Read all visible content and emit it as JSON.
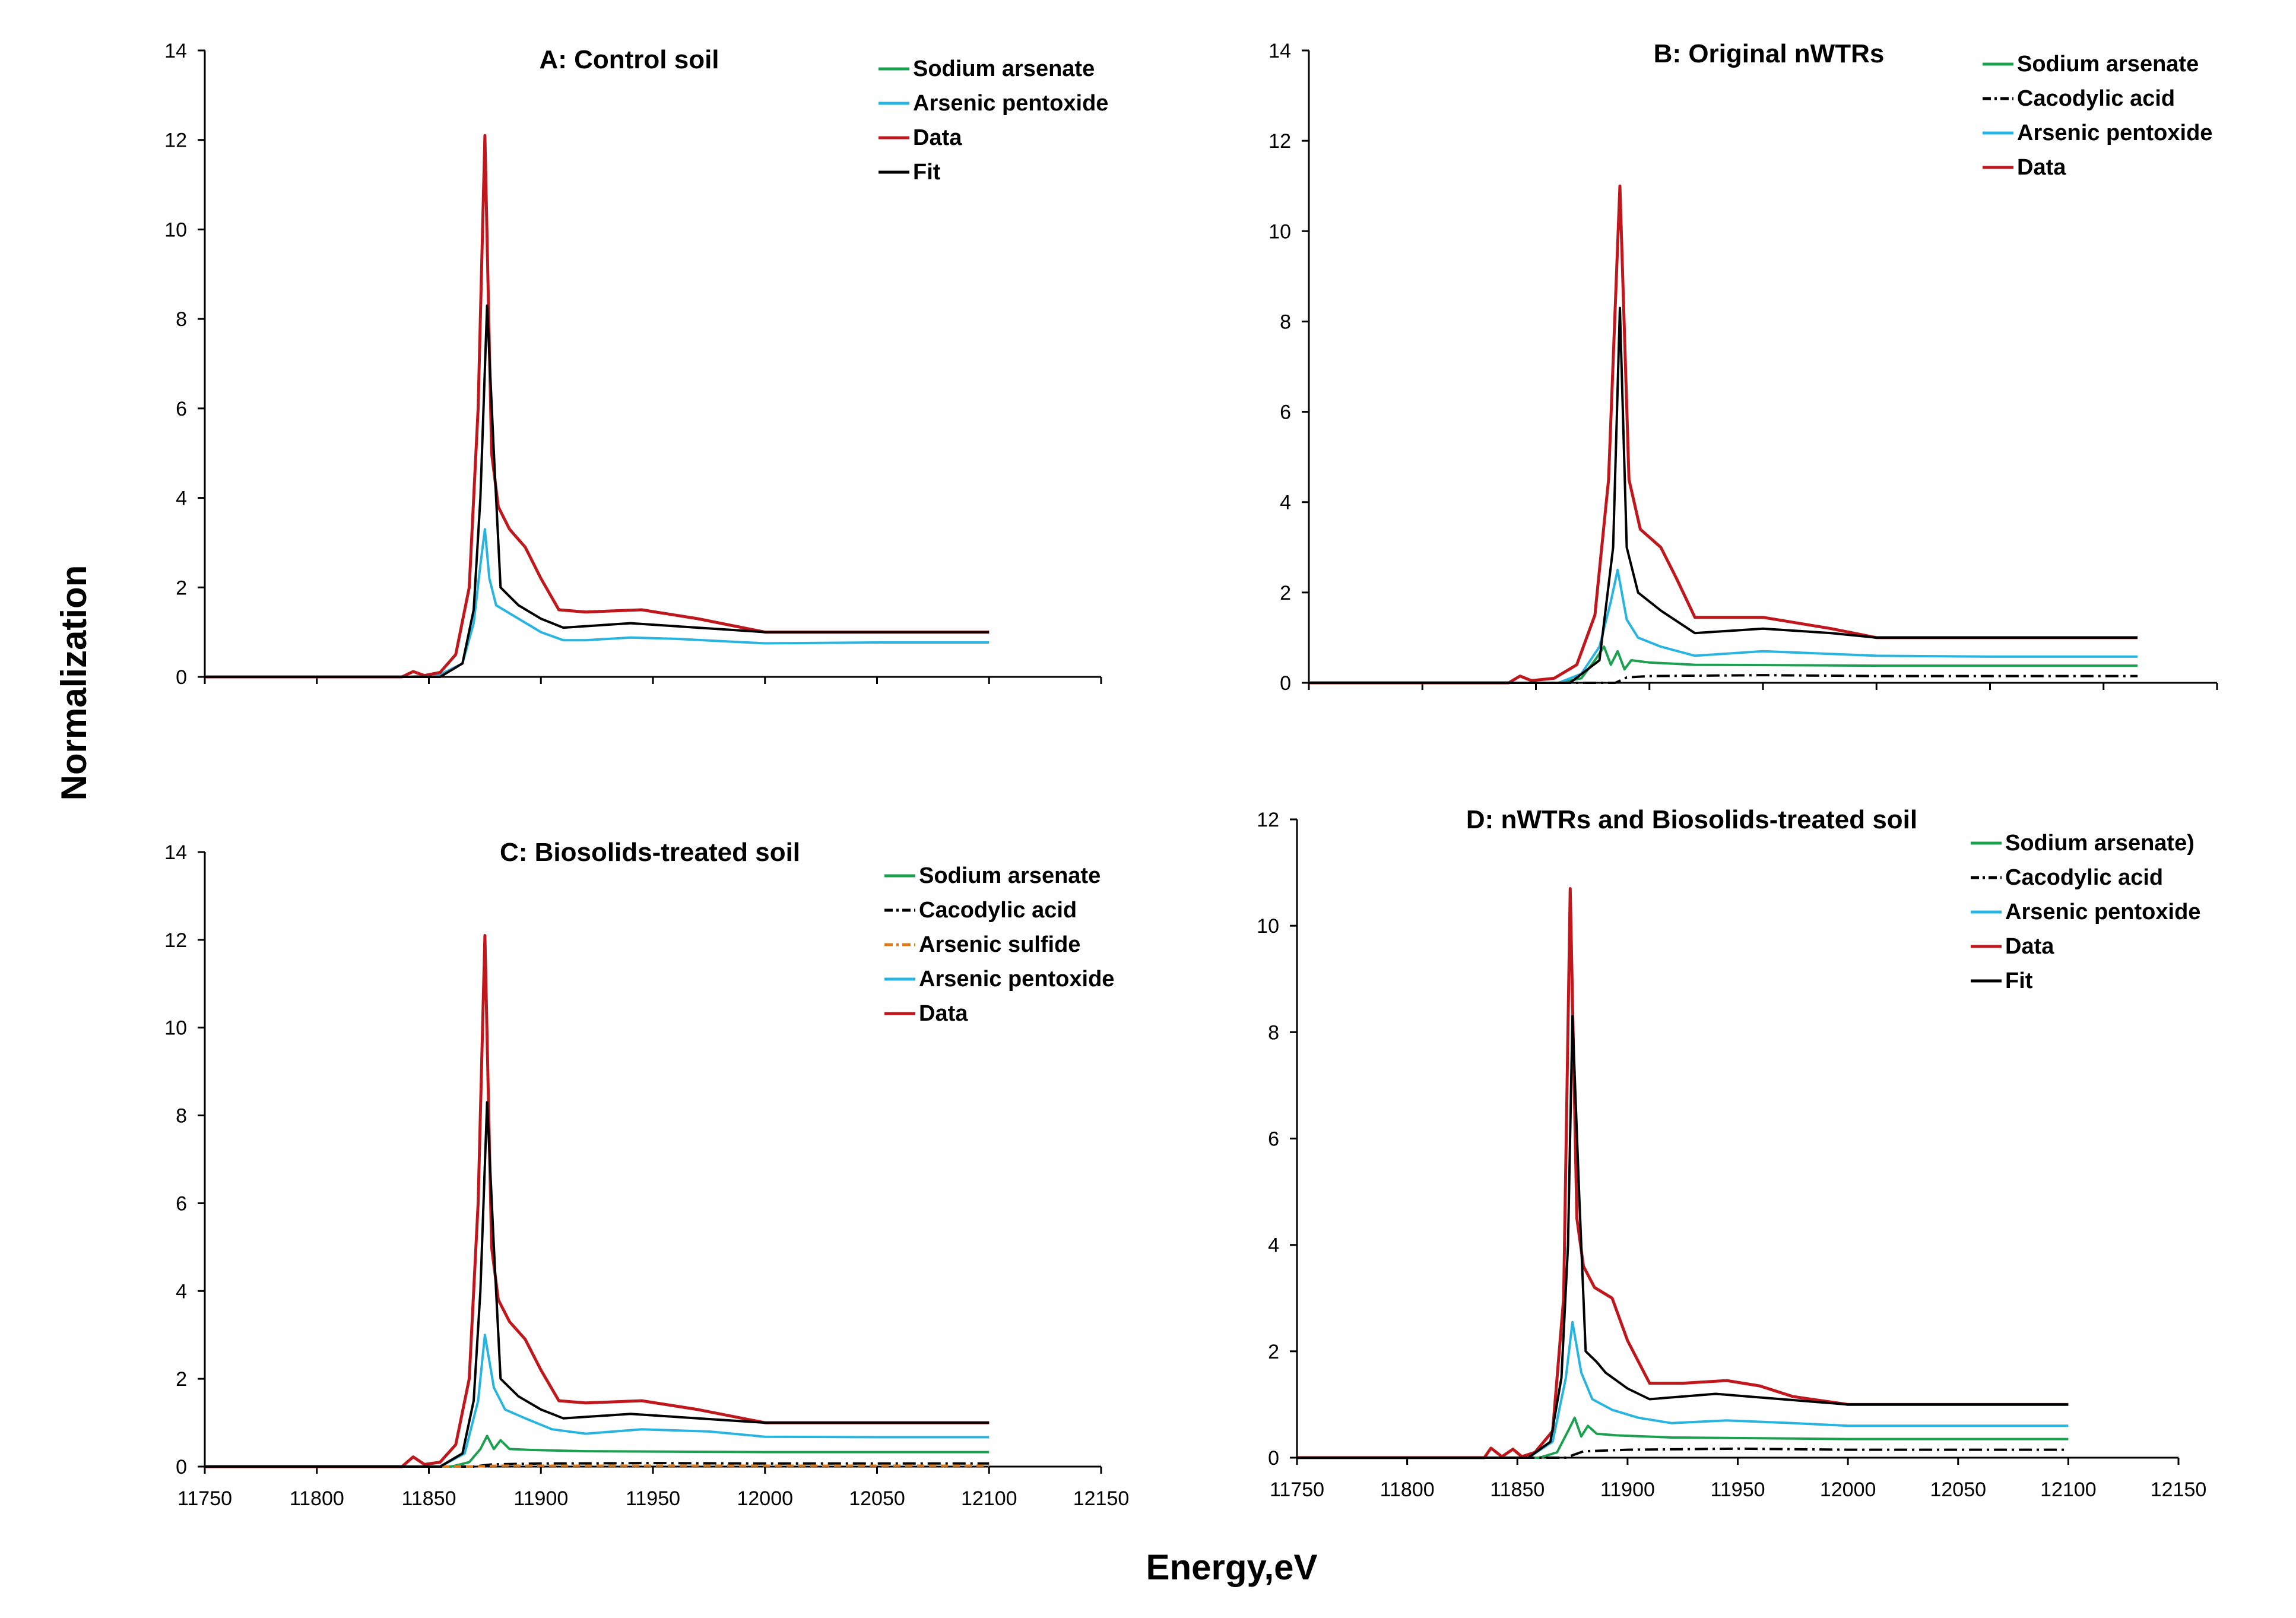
{
  "xlabel": "Energy,eV",
  "ylabel": "Normalization",
  "colors": {
    "Sodium arsenate": "#1aa04f",
    "Sodium arsenate)": "#1aa04f",
    "Arsenic pentoxide": "#27b4e0",
    "Data": "#c0171d",
    "Fit": "#000000",
    "Cacodylic acid": "#000000",
    "Arsenic sulfide": "#e07b1a"
  },
  "chart_data": [
    {
      "type": "line",
      "title": "A: Control  soil",
      "xlim": [
        11750,
        12150
      ],
      "ylim": [
        0,
        14
      ],
      "yticks": [
        0,
        2,
        4,
        6,
        8,
        10,
        12,
        14
      ],
      "xticks": [
        11750,
        11800,
        11850,
        11900,
        11950,
        12000,
        12050,
        12100,
        12150
      ],
      "show_xtick_labels": false,
      "legend": [
        "Sodium arsenate",
        "Arsenic pentoxide",
        "Data",
        "Fit"
      ],
      "series": [
        {
          "name": "Arsenic pentoxide",
          "x": [
            11750,
            11840,
            11855,
            11865,
            11870,
            11873,
            11875,
            11877,
            11880,
            11890,
            11900,
            11910,
            11920,
            11940,
            11960,
            12000,
            12050,
            12100
          ],
          "y": [
            0,
            0,
            0.05,
            0.3,
            1.2,
            2.5,
            3.3,
            2.2,
            1.6,
            1.3,
            1.0,
            0.82,
            0.82,
            0.88,
            0.85,
            0.75,
            0.77,
            0.77
          ]
        },
        {
          "name": "Data",
          "x": [
            11750,
            11838,
            11843,
            11848,
            11855,
            11862,
            11868,
            11872,
            11875,
            11878,
            11881,
            11886,
            11893,
            11900,
            11908,
            11920,
            11945,
            11970,
            12000,
            12050,
            12100
          ],
          "y": [
            0,
            0,
            0.12,
            0.03,
            0.1,
            0.5,
            2.0,
            6.0,
            12.1,
            5.0,
            3.8,
            3.3,
            2.9,
            2.2,
            1.5,
            1.45,
            1.5,
            1.3,
            1.0,
            1.0,
            1.0
          ]
        },
        {
          "name": "Fit",
          "x": [
            11750,
            11855,
            11865,
            11870,
            11873,
            11876,
            11879,
            11882,
            11886,
            11890,
            11900,
            11910,
            11940,
            11970,
            12000,
            12050,
            12100
          ],
          "y": [
            0,
            0,
            0.3,
            1.5,
            4.0,
            8.3,
            5.0,
            2.0,
            1.8,
            1.6,
            1.3,
            1.1,
            1.2,
            1.1,
            1.0,
            1.0,
            1.0
          ]
        }
      ]
    },
    {
      "type": "line",
      "title": "B: Original nWTRs",
      "xlim": [
        11750,
        12150
      ],
      "ylim": [
        0,
        14
      ],
      "yticks": [
        0,
        2,
        4,
        6,
        8,
        10,
        12,
        14
      ],
      "xticks": [
        11750,
        11800,
        11850,
        11900,
        11950,
        12000,
        12050,
        12100,
        12150
      ],
      "show_xtick_labels": false,
      "legend": [
        "Sodium arsenate",
        "Cacodylic acid",
        "Arsenic pentoxide",
        "Data"
      ],
      "series": [
        {
          "name": "Sodium arsenate",
          "x": [
            11750,
            11860,
            11870,
            11876,
            11880,
            11883,
            11886,
            11889,
            11892,
            11900,
            11920,
            12000,
            12050,
            12115
          ],
          "y": [
            0,
            0,
            0.1,
            0.5,
            0.8,
            0.4,
            0.7,
            0.3,
            0.5,
            0.45,
            0.4,
            0.38,
            0.38,
            0.38
          ]
        },
        {
          "name": "Cacodylic acid",
          "x": [
            11750,
            11885,
            11890,
            11900,
            11950,
            12000,
            12050,
            12115
          ],
          "y": [
            0,
            0,
            0.12,
            0.15,
            0.17,
            0.15,
            0.15,
            0.15
          ]
        },
        {
          "name": "Arsenic pentoxide",
          "x": [
            11750,
            11860,
            11870,
            11878,
            11883,
            11886,
            11890,
            11895,
            11905,
            11920,
            11950,
            12000,
            12050,
            12115
          ],
          "y": [
            0,
            0,
            0.2,
            0.8,
            1.8,
            2.5,
            1.4,
            1.0,
            0.8,
            0.6,
            0.7,
            0.6,
            0.58,
            0.58
          ]
        },
        {
          "name": "Data",
          "x": [
            11750,
            11838,
            11843,
            11848,
            11858,
            11868,
            11876,
            11882,
            11887,
            11891,
            11896,
            11905,
            11912,
            11920,
            11950,
            11980,
            12000,
            12050,
            12115
          ],
          "y": [
            0,
            0,
            0.15,
            0.05,
            0.1,
            0.4,
            1.5,
            4.5,
            11.0,
            4.5,
            3.4,
            3.0,
            2.3,
            1.45,
            1.45,
            1.2,
            1.0,
            1.0,
            1.0
          ]
        },
        {
          "name": "Fit",
          "x": [
            11750,
            11865,
            11878,
            11884,
            11887,
            11890,
            11895,
            11905,
            11920,
            11950,
            11980,
            12000,
            12115
          ],
          "y": [
            0,
            0,
            0.5,
            3.0,
            8.3,
            3.0,
            2.0,
            1.6,
            1.1,
            1.2,
            1.1,
            1.0,
            1.0
          ]
        }
      ]
    },
    {
      "type": "line",
      "title": "C: Biosolids-treated soil",
      "xlim": [
        11750,
        12150
      ],
      "ylim": [
        0,
        14
      ],
      "yticks": [
        0,
        2,
        4,
        6,
        8,
        10,
        12,
        14
      ],
      "xticks": [
        11750,
        11800,
        11850,
        11900,
        11950,
        12000,
        12050,
        12100,
        12150
      ],
      "show_xtick_labels": true,
      "legend": [
        "Sodium arsenate",
        "Cacodylic acid",
        "Arsenic sulfide",
        "Arsenic pentoxide",
        "Data"
      ],
      "series": [
        {
          "name": "Sodium arsenate",
          "x": [
            11750,
            11860,
            11868,
            11873,
            11876,
            11879,
            11882,
            11886,
            11895,
            11920,
            12000,
            12100
          ],
          "y": [
            0,
            0,
            0.1,
            0.4,
            0.7,
            0.4,
            0.6,
            0.4,
            0.38,
            0.35,
            0.33,
            0.33
          ]
        },
        {
          "name": "Cacodylic acid",
          "x": [
            11750,
            11870,
            11878,
            11900,
            11950,
            12000,
            12100
          ],
          "y": [
            0,
            0,
            0.05,
            0.07,
            0.08,
            0.07,
            0.07
          ]
        },
        {
          "name": "Arsenic sulfide",
          "x": [
            11750,
            11870,
            11880,
            11950,
            12100
          ],
          "y": [
            0,
            0,
            0.02,
            0.02,
            0.02
          ]
        },
        {
          "name": "Arsenic pentoxide",
          "x": [
            11750,
            11855,
            11866,
            11872,
            11875,
            11879,
            11884,
            11893,
            11905,
            11920,
            11945,
            11975,
            12000,
            12050,
            12100
          ],
          "y": [
            0,
            0,
            0.3,
            1.5,
            3.0,
            1.8,
            1.3,
            1.1,
            0.85,
            0.75,
            0.85,
            0.8,
            0.68,
            0.67,
            0.67
          ]
        },
        {
          "name": "Data",
          "x": [
            11750,
            11838,
            11843,
            11848,
            11855,
            11862,
            11868,
            11872,
            11875,
            11878,
            11881,
            11886,
            11893,
            11900,
            11908,
            11920,
            11945,
            11970,
            12000,
            12050,
            12100
          ],
          "y": [
            0,
            0,
            0.22,
            0.05,
            0.1,
            0.5,
            2.0,
            6.0,
            12.1,
            5.0,
            3.8,
            3.3,
            2.9,
            2.2,
            1.5,
            1.45,
            1.5,
            1.3,
            1.0,
            1.0,
            1.0
          ]
        },
        {
          "name": "Fit",
          "x": [
            11750,
            11855,
            11865,
            11870,
            11873,
            11876,
            11879,
            11882,
            11886,
            11890,
            11900,
            11910,
            11940,
            11970,
            12000,
            12050,
            12100
          ],
          "y": [
            0,
            0,
            0.3,
            1.5,
            4.0,
            8.3,
            5.0,
            2.0,
            1.8,
            1.6,
            1.3,
            1.1,
            1.2,
            1.1,
            1.0,
            1.0,
            1.0
          ]
        }
      ]
    },
    {
      "type": "line",
      "title": "D: nWTRs and Biosolids-treated soil",
      "xlim": [
        11750,
        12150
      ],
      "ylim": [
        0,
        12
      ],
      "yticks": [
        0,
        2,
        4,
        6,
        8,
        10,
        12
      ],
      "xticks": [
        11750,
        11800,
        11850,
        11900,
        11950,
        12000,
        12050,
        12100,
        12150
      ],
      "show_xtick_labels": true,
      "legend": [
        "Sodium arsenate)",
        "Cacodylic acid",
        "Arsenic pentoxide",
        "Data",
        "Fit"
      ],
      "series": [
        {
          "name": "Sodium arsenate)",
          "x": [
            11750,
            11860,
            11868,
            11873,
            11876,
            11879,
            11882,
            11886,
            11895,
            11920,
            12000,
            12100
          ],
          "y": [
            0,
            0,
            0.1,
            0.5,
            0.75,
            0.4,
            0.6,
            0.45,
            0.42,
            0.38,
            0.35,
            0.35
          ]
        },
        {
          "name": "Cacodylic acid",
          "x": [
            11750,
            11872,
            11880,
            11900,
            11950,
            12000,
            12100
          ],
          "y": [
            0,
            0,
            0.12,
            0.15,
            0.17,
            0.15,
            0.15
          ]
        },
        {
          "name": "Arsenic pentoxide",
          "x": [
            11750,
            11855,
            11866,
            11872,
            11875,
            11879,
            11884,
            11893,
            11905,
            11920,
            11945,
            11975,
            12000,
            12050,
            12100
          ],
          "y": [
            0,
            0,
            0.3,
            1.5,
            2.55,
            1.6,
            1.1,
            0.9,
            0.75,
            0.65,
            0.7,
            0.65,
            0.6,
            0.6,
            0.6
          ]
        },
        {
          "name": "Data",
          "x": [
            11750,
            11835,
            11838,
            11843,
            11848,
            11852,
            11858,
            11866,
            11871,
            11874,
            11877,
            11880,
            11885,
            11893,
            11900,
            11910,
            11925,
            11945,
            11960,
            11975,
            12000,
            12050,
            12100
          ],
          "y": [
            0,
            0,
            0.18,
            0.02,
            0.16,
            0.02,
            0.1,
            0.5,
            3.0,
            10.7,
            4.5,
            3.6,
            3.2,
            3.0,
            2.2,
            1.4,
            1.4,
            1.45,
            1.35,
            1.15,
            1.0,
            1.0,
            1.0
          ]
        },
        {
          "name": "Fit",
          "x": [
            11750,
            11855,
            11865,
            11870,
            11873,
            11875,
            11878,
            11881,
            11886,
            11890,
            11900,
            11910,
            11940,
            11970,
            12000,
            12050,
            12100
          ],
          "y": [
            0,
            0,
            0.3,
            1.5,
            4.0,
            8.3,
            5.0,
            2.0,
            1.8,
            1.6,
            1.3,
            1.1,
            1.2,
            1.1,
            1.0,
            1.0,
            1.0
          ]
        }
      ]
    }
  ]
}
